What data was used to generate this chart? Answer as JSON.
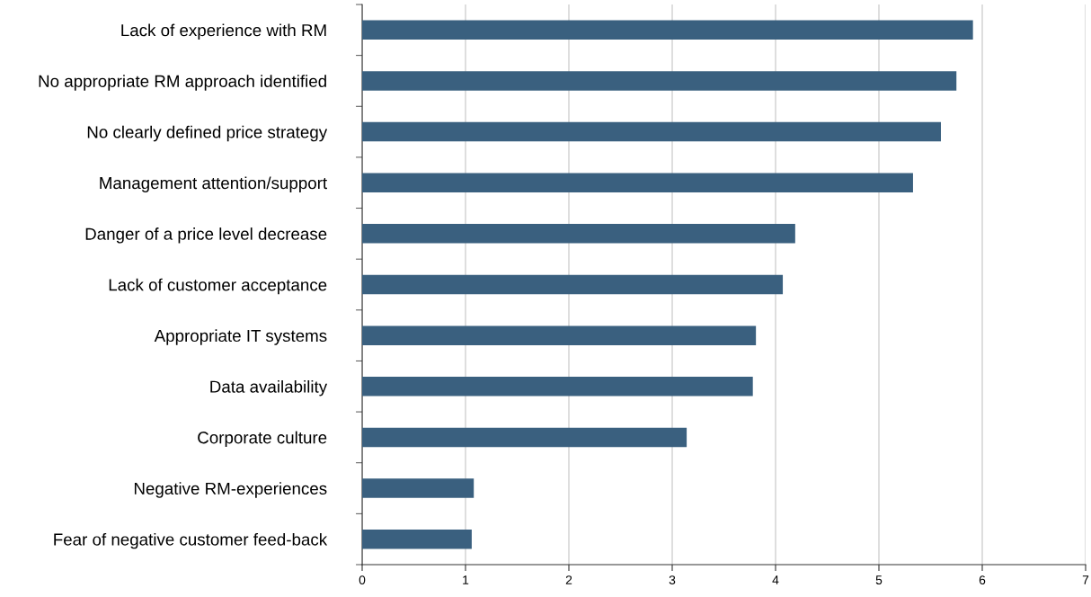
{
  "chart_data": {
    "type": "bar",
    "orientation": "horizontal",
    "categories": [
      "Lack of experience with RM",
      "No appropriate RM approach identified",
      "No clearly defined price strategy",
      "Management attention/support",
      "Danger of a price level decrease",
      "Lack of customer acceptance",
      "Appropriate IT systems",
      "Data availability",
      "Corporate culture",
      "Negative RM-experiences",
      "Fear of negative customer feed-back"
    ],
    "values": [
      5.91,
      5.75,
      5.6,
      5.33,
      4.19,
      4.07,
      3.81,
      3.78,
      3.14,
      1.08,
      1.06
    ],
    "color": "#3a607f",
    "xlim": [
      0,
      7
    ],
    "xticks": [
      0,
      1,
      2,
      3,
      4,
      5,
      6,
      7
    ],
    "grid": "x"
  }
}
